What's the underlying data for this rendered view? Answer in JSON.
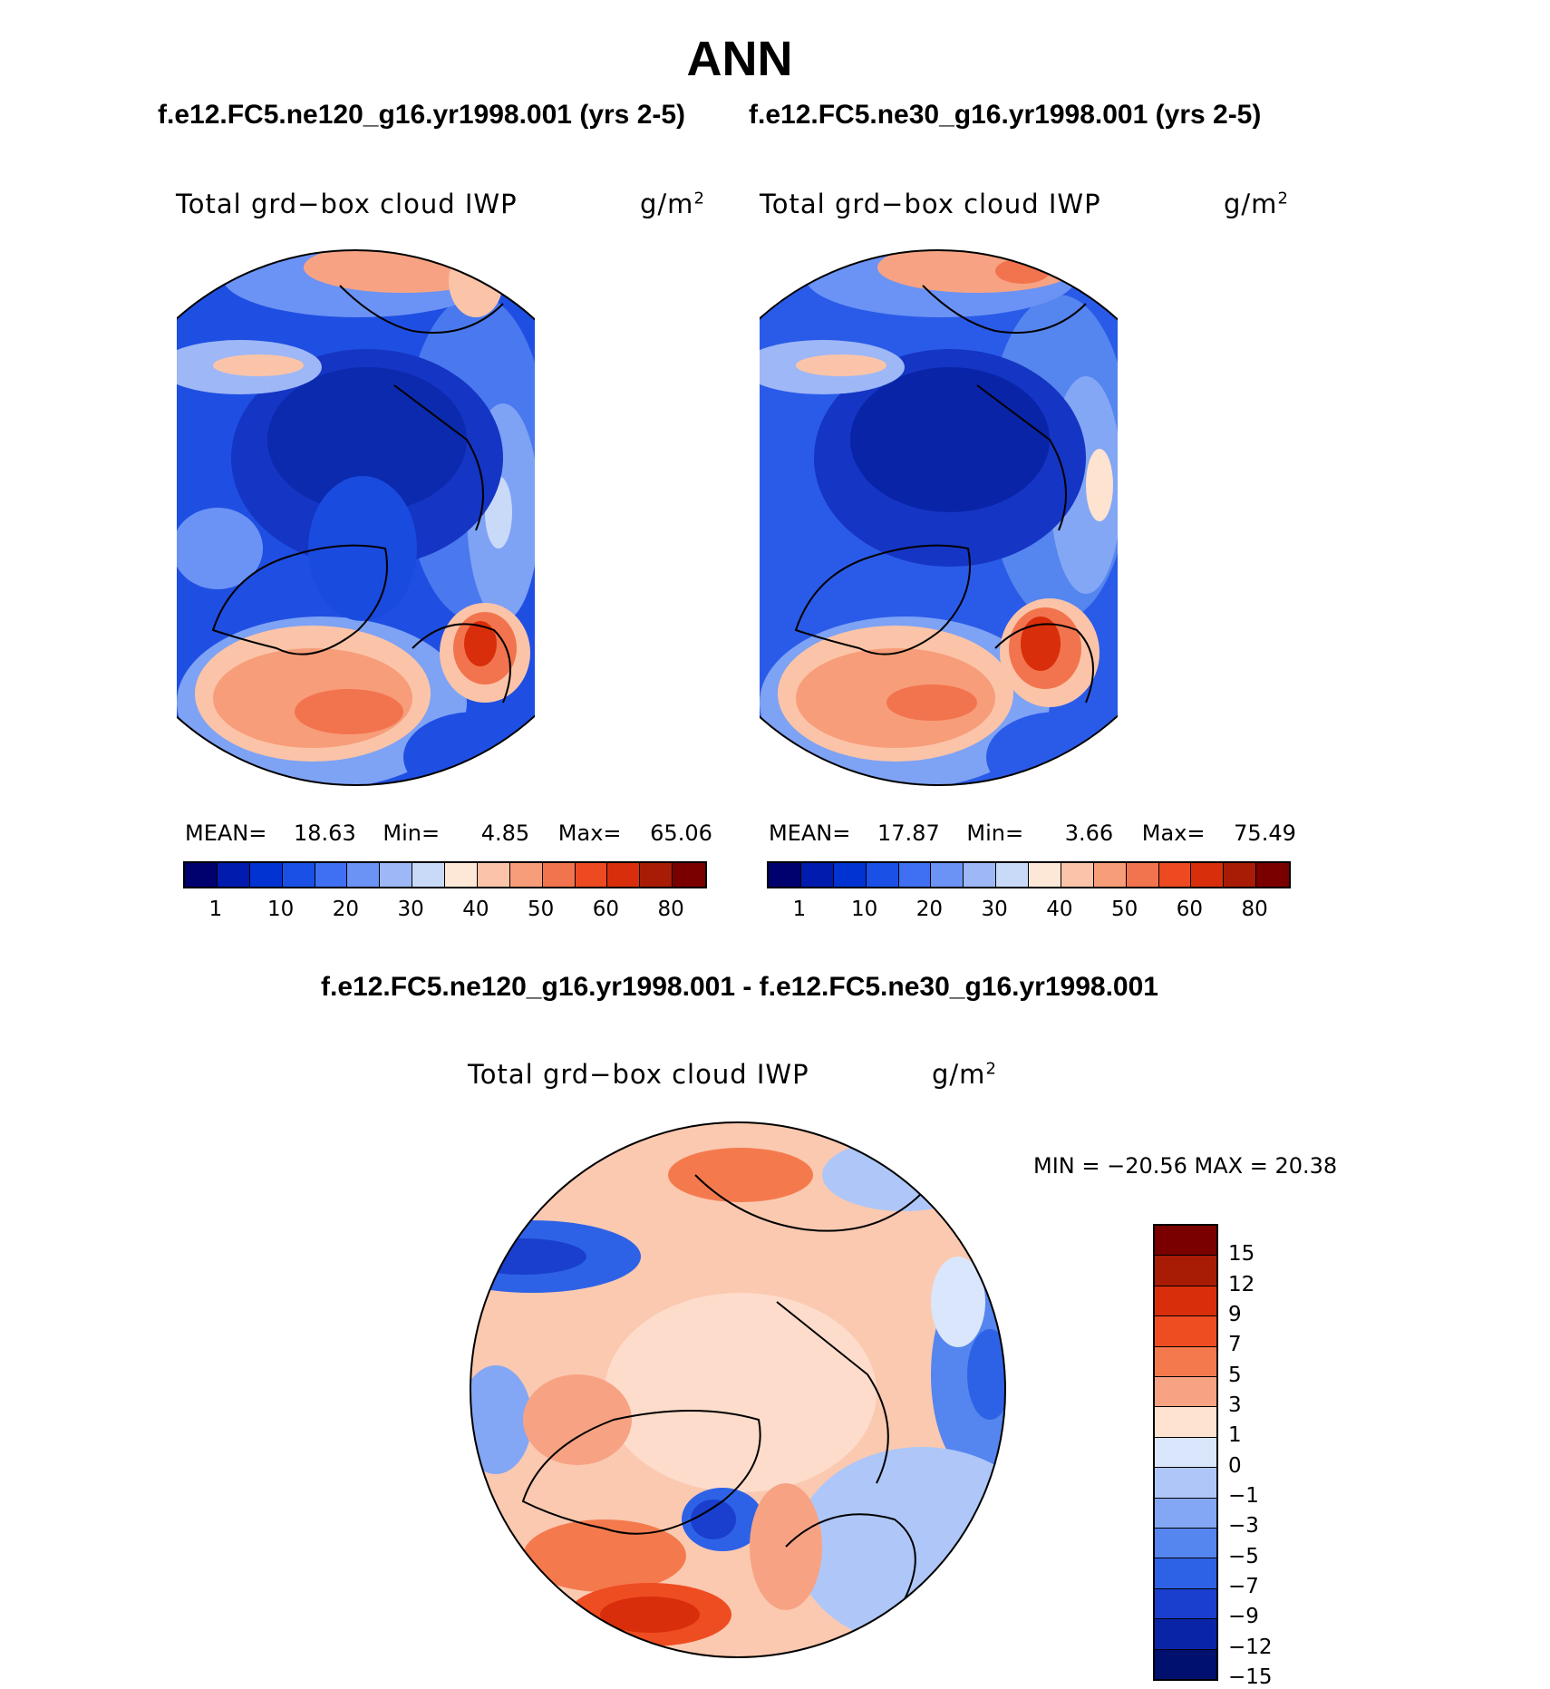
{
  "main_title": "ANN",
  "panel_left": {
    "case_title": "f.e12.FC5.ne120_g16.yr1998.001 (yrs 2-5)",
    "variable": "Total grd−box cloud IWP",
    "units": "g/m",
    "units_sup": "2",
    "stats": {
      "mean_label": "MEAN=",
      "mean": "18.63",
      "min_label": "Min=",
      "min": "4.85",
      "max_label": "Max=",
      "max": "65.06"
    }
  },
  "panel_right": {
    "case_title": "f.e12.FC5.ne30_g16.yr1998.001 (yrs 2-5)",
    "variable": "Total grd−box cloud IWP",
    "units": "g/m",
    "units_sup": "2",
    "stats": {
      "mean_label": "MEAN=",
      "mean": "17.87",
      "min_label": "Min=",
      "min": "3.66",
      "max_label": "Max=",
      "max": "75.49"
    }
  },
  "panel_diff": {
    "title": "f.e12.FC5.ne120_g16.yr1998.001 - f.e12.FC5.ne30_g16.yr1998.001",
    "variable": "Total grd−box cloud IWP",
    "units": "g/m",
    "units_sup": "2",
    "minmax": "MIN = −20.56 MAX =   20.38"
  },
  "colorbar_abs": {
    "colors": [
      "#00006e",
      "#001bad",
      "#0033d1",
      "#1a50e6",
      "#3f6ff2",
      "#6b93f5",
      "#9db7f7",
      "#c9daf9",
      "#fde8d8",
      "#fbc4a8",
      "#f79d79",
      "#f2744e",
      "#ed4a22",
      "#d92e0b",
      "#a81b05",
      "#7a0000"
    ],
    "labels": [
      "1",
      "10",
      "20",
      "30",
      "40",
      "50",
      "60",
      "80"
    ]
  },
  "colorbar_diff": {
    "colors": [
      "#7a0000",
      "#a81b05",
      "#d92e0b",
      "#ee4d22",
      "#f47a4e",
      "#f7a383",
      "#fde3d0",
      "#d9e6fb",
      "#aec7f8",
      "#83a7f4",
      "#5585ee",
      "#2e62e6",
      "#1a3fce",
      "#0a24a8",
      "#00106e"
    ],
    "labels": [
      "15",
      "12",
      "9",
      "7",
      "5",
      "3",
      "1",
      "0",
      "−1",
      "−3",
      "−5",
      "−7",
      "−9",
      "−12",
      "−15"
    ]
  }
}
